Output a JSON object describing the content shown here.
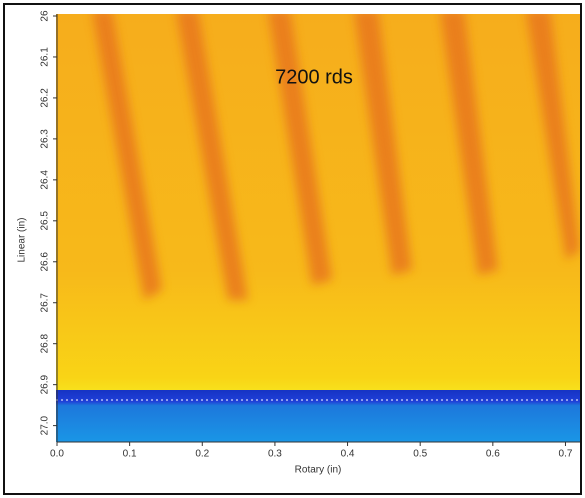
{
  "chart_data": {
    "type": "heatmap",
    "annotation": "7200 rds",
    "xlabel": "Rotary (in)",
    "ylabel": "Linear (in)",
    "xlim": [
      0,
      0.72
    ],
    "xticks": [
      {
        "value": 0,
        "label": "0.0"
      },
      0.1,
      0.2,
      0.3,
      0.4,
      0.5,
      0.6,
      0.7
    ],
    "ylim": [
      26,
      27.04
    ],
    "yticks": [
      26,
      26.1,
      26.2,
      26.3,
      26.4,
      26.5,
      26.6,
      26.7,
      26.8,
      26.9,
      {
        "value": 27,
        "label": "27.0"
      }
    ],
    "y_inverted": true,
    "grid": false
  }
}
